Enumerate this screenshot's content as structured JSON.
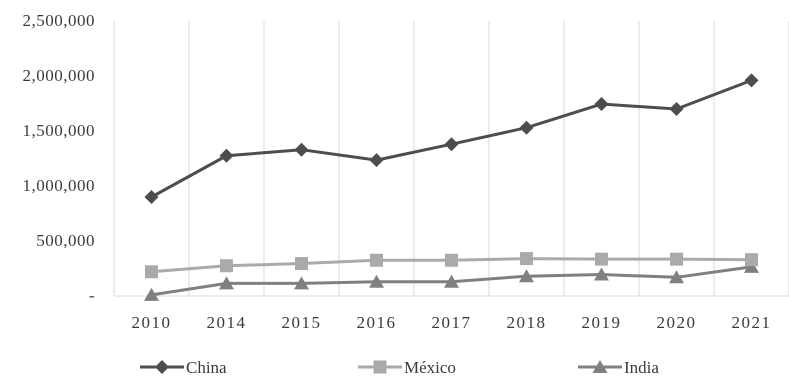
{
  "chart_data": {
    "type": "line",
    "title": "",
    "xlabel": "",
    "ylabel": "",
    "categories": [
      "2010",
      "2014",
      "2015",
      "2016",
      "2017",
      "2018",
      "2019",
      "2020",
      "2021"
    ],
    "ylim": [
      0,
      2500000
    ],
    "y_ticks": [
      0,
      500000,
      1000000,
      1500000,
      2000000,
      2500000
    ],
    "y_tick_labels": [
      "-",
      "500,000",
      "1,000,000",
      "1,500,000",
      "2,000,000",
      "2,500,000"
    ],
    "grid": "vertical",
    "legend_position": "bottom",
    "series": [
      {
        "name": "China",
        "marker": "diamond",
        "color": "#4d4d4d",
        "values": [
          900000,
          1275000,
          1330000,
          1235000,
          1380000,
          1530000,
          1745000,
          1700000,
          1960000
        ]
      },
      {
        "name": "México",
        "marker": "square",
        "color": "#aaaaaa",
        "values": [
          220000,
          275000,
          295000,
          325000,
          325000,
          340000,
          335000,
          335000,
          330000
        ]
      },
      {
        "name": "India",
        "marker": "triangle",
        "color": "#808080",
        "values": [
          10000,
          115000,
          115000,
          130000,
          130000,
          180000,
          195000,
          170000,
          265000
        ]
      }
    ]
  }
}
